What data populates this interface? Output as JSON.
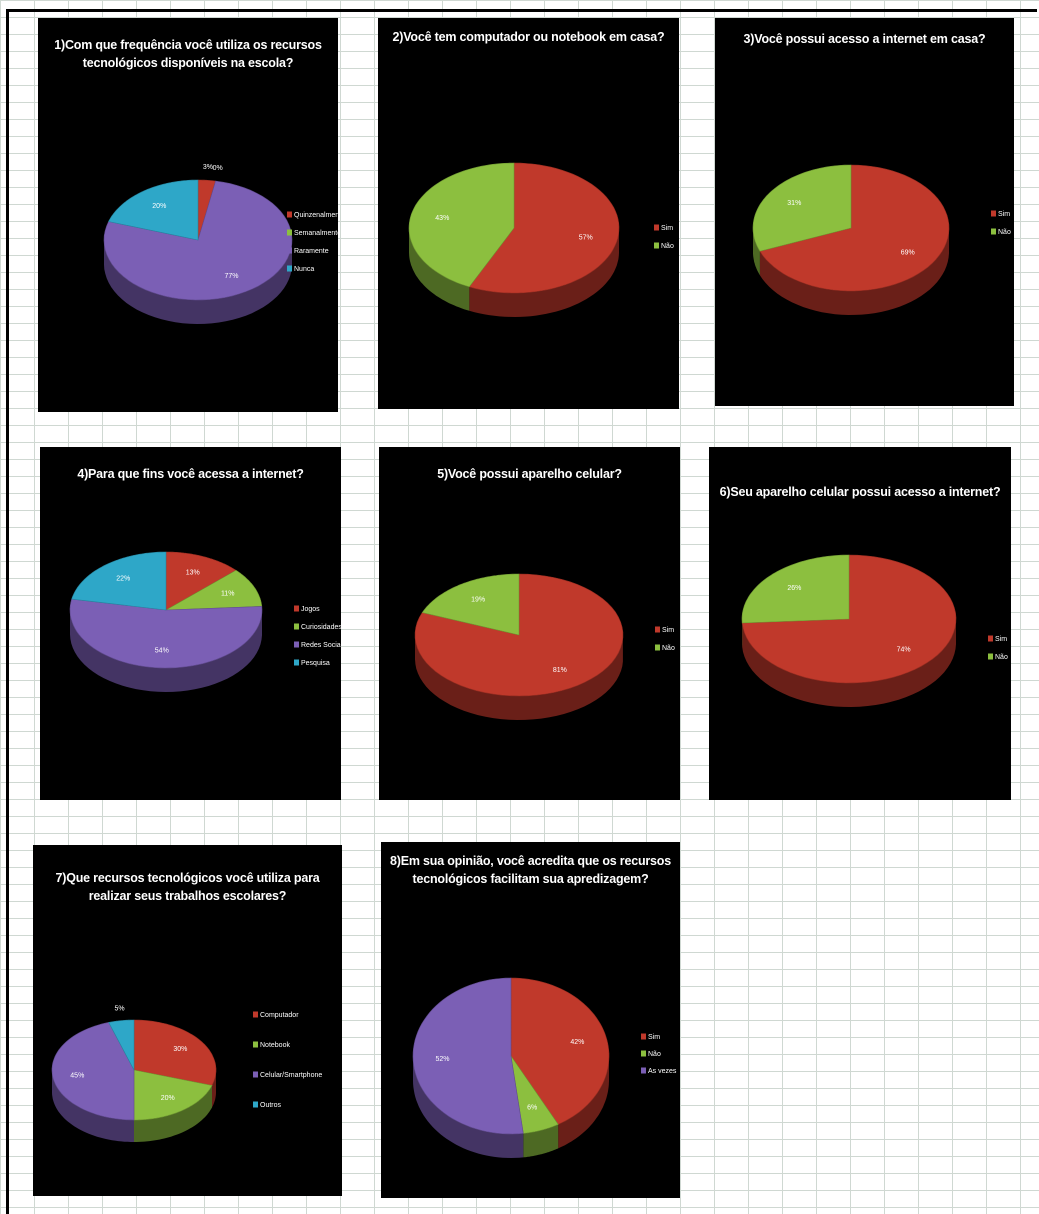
{
  "colors": {
    "red": "#c0392b",
    "green": "#8cbf3f",
    "purple": "#7b5fb5",
    "cyan": "#2ea7c8",
    "background": "#000000",
    "grid": "#cfd8d2"
  },
  "chart_data": [
    {
      "type": "pie",
      "title": "1)Com que frequência você utiliza os recursos tecnológicos disponíveis na escola?",
      "categories": [
        "Quinzenalmente",
        "Semanalmente",
        "Raramente",
        "Nunca"
      ],
      "values": [
        3,
        0,
        77,
        20
      ],
      "labels": [
        "3%",
        "0%",
        "77%",
        "20%"
      ],
      "legend_position": "right"
    },
    {
      "type": "pie",
      "title": "2)Você tem computador ou notebook em casa?",
      "categories": [
        "Sim",
        "Não"
      ],
      "values": [
        57,
        43
      ],
      "labels": [
        "57%",
        "43%"
      ],
      "legend_position": "right"
    },
    {
      "type": "pie",
      "title": "3)Você possui acesso a internet em casa?",
      "categories": [
        "Sim",
        "Não"
      ],
      "values": [
        69,
        31
      ],
      "labels": [
        "69%",
        "31%"
      ],
      "legend_position": "right"
    },
    {
      "type": "pie",
      "title": "4)Para que fins você acessa a internet?",
      "categories": [
        "Jogos",
        "Curiosidades",
        "Redes Sociais",
        "Pesquisa"
      ],
      "values": [
        13,
        11,
        54,
        22
      ],
      "labels": [
        "13%",
        "11%",
        "54%",
        "22%"
      ],
      "legend_position": "right"
    },
    {
      "type": "pie",
      "title": "5)Você possui aparelho celular?",
      "categories": [
        "Sim",
        "Não"
      ],
      "values": [
        81,
        19
      ],
      "labels": [
        "81%",
        "19%"
      ],
      "legend_position": "right"
    },
    {
      "type": "pie",
      "title": "6)Seu aparelho celular possui acesso a internet?",
      "categories": [
        "Sim",
        "Não"
      ],
      "values": [
        74,
        26
      ],
      "labels": [
        "74%",
        "26%"
      ],
      "legend_position": "right"
    },
    {
      "type": "pie",
      "title": "7)Que recursos tecnológicos você utiliza para realizar seus trabalhos escolares?",
      "categories": [
        "Computador",
        "Notebook",
        "Celular/Smartphone",
        "Outros"
      ],
      "values": [
        30,
        20,
        45,
        5
      ],
      "labels": [
        "30%",
        "20%",
        "45%",
        "5%"
      ],
      "legend_position": "right"
    },
    {
      "type": "pie",
      "title": "8)Em sua opinião, você acredita que os recursos tecnológicos facilitam sua apredizagem?",
      "categories": [
        "Sim",
        "Não",
        "As vezes"
      ],
      "values": [
        42,
        6,
        52
      ],
      "labels": [
        "42%",
        "6%",
        "52%"
      ],
      "legend_position": "right"
    }
  ]
}
